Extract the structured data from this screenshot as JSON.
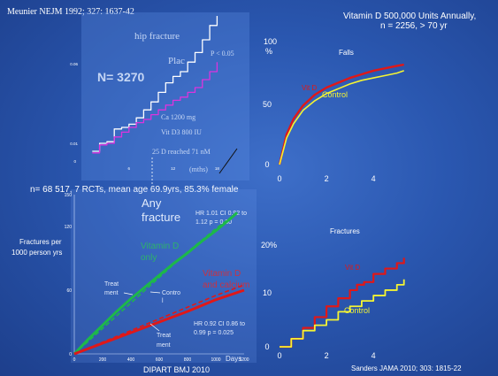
{
  "slide": {
    "citation_top_left": "Meunier NEJM 1992; 327: 1637-42",
    "header_top_right_line1": "Vitamin D 500,000 Units Annually,",
    "header_top_right_line2": "n = 2256,  > 70 yr",
    "mid_caption": "n= 68 517, 7 RCTs, mean age 69.9yrs, 85.3% female",
    "citation_bottom_left": "DIPART BMJ 2010",
    "citation_bottom_right": "Sanders JAMA 2010; 303: 1815-22"
  },
  "chart_data": [
    {
      "type": "line",
      "id": "meunier",
      "title": "hip fracture",
      "annotations": {
        "n": "N= 3270",
        "plac": "Plac",
        "pvalue": "P < 0.05",
        "ca": "Ca 1200 mg",
        "vitd": "Vit D3 800 IU",
        "reached": "25 D reached 71 nM",
        "xunit": "(mths)"
      },
      "x_ticks": [
        "6",
        "12",
        "18"
      ],
      "y_ticks": [
        "0.01",
        "0.06"
      ],
      "ylim": [
        0,
        0.09
      ],
      "xlim": [
        0,
        20
      ],
      "series": [
        {
          "name": "Plac",
          "color": "#ffffff",
          "x": [
            1,
            2,
            3,
            4,
            5,
            6,
            7,
            8,
            9,
            10,
            11,
            12,
            13,
            14,
            15,
            16,
            17,
            18
          ],
          "y": [
            0.005,
            0.01,
            0.011,
            0.019,
            0.02,
            0.022,
            0.026,
            0.031,
            0.036,
            0.042,
            0.048,
            0.052,
            0.055,
            0.061,
            0.067,
            0.075,
            0.084,
            0.09
          ]
        },
        {
          "name": "",
          "color": "#dd33dd",
          "x": [
            1,
            2,
            3,
            4,
            5,
            6,
            7,
            8,
            9,
            10,
            11,
            12,
            13,
            14,
            15,
            16,
            17,
            18
          ],
          "y": [
            0.004,
            0.009,
            0.01,
            0.014,
            0.017,
            0.02,
            0.023,
            0.025,
            0.028,
            0.031,
            0.034,
            0.037,
            0.039,
            0.042,
            0.045,
            0.05,
            0.055,
            0.061
          ]
        }
      ]
    },
    {
      "type": "line",
      "id": "falls",
      "title": "Falls",
      "ylabel_line1": "100",
      "ylabel_line2": "%",
      "y_ticks": [
        "50",
        "0"
      ],
      "x_ticks": [
        "0",
        "2",
        "4"
      ],
      "xlim": [
        0,
        5.5
      ],
      "ylim": [
        0,
        100
      ],
      "series": [
        {
          "name": "Vit D",
          "color": "#e01818",
          "x": [
            0,
            0.3,
            0.6,
            1,
            1.5,
            2,
            2.5,
            3,
            3.5,
            4,
            4.5,
            5,
            5.3
          ],
          "y": [
            0,
            25,
            38,
            49,
            58,
            64,
            68,
            72,
            75,
            78,
            80,
            82,
            83
          ]
        },
        {
          "name": "Control",
          "color": "#f5f532",
          "x": [
            0,
            0.3,
            0.6,
            1,
            1.5,
            2,
            2.5,
            3,
            3.5,
            4,
            4.5,
            5,
            5.3
          ],
          "y": [
            0,
            22,
            34,
            45,
            53,
            59,
            63,
            67,
            70,
            72,
            74,
            76,
            78
          ]
        }
      ]
    },
    {
      "type": "line",
      "id": "dipart",
      "title_line1": "Any",
      "title_line2": "fracture",
      "ylabel_line1": "Fractures per",
      "ylabel_line2": "1000 person yrs",
      "xlabel": "Days",
      "x_ticks": [
        "0",
        "200",
        "400",
        "600",
        "800",
        "1000",
        "1200"
      ],
      "y_ticks": [
        "0",
        "60",
        "120",
        "150"
      ],
      "xlim": [
        0,
        1200
      ],
      "ylim": [
        0,
        150
      ],
      "annotations": {
        "hr_top": "HR 1.01 CI 0.92 to 1.12 p = 0.80",
        "hr_bottom": "HR 0.92  CI 0.86  to 0.99 p = 0.025",
        "vitd_only_line1": "Vitamin  D",
        "vitd_only_line2": "only",
        "vitd_ca_line1": "Vitamin D",
        "vitd_ca_line2": "and calcium",
        "treat_top_line1": "Treat",
        "treat_top_line2": "ment",
        "control_line1": "Contro",
        "control_line2": "l",
        "treat_bottom_line1": "Treat",
        "treat_bottom_line2": "ment"
      },
      "series": [
        {
          "name": "Vitamin D only",
          "color": "#1db84a",
          "style": "solid",
          "x": [
            0,
            100,
            200,
            300,
            400,
            500,
            600,
            700,
            800,
            900,
            1000,
            1100,
            1150
          ],
          "y": [
            0,
            14,
            27,
            40,
            52,
            63,
            74,
            85,
            95,
            106,
            116,
            127,
            133
          ]
        },
        {
          "name": "Control",
          "color": "#1db84a",
          "style": "dashed",
          "x": [
            0,
            200,
            400,
            600,
            800,
            1000,
            1150
          ],
          "y": [
            0,
            24,
            48,
            72,
            96,
            118,
            133
          ]
        },
        {
          "name": "Vitamin D and calcium",
          "color": "#e01818",
          "style": "solid",
          "x": [
            0,
            200,
            400,
            600,
            800,
            1000,
            1200
          ],
          "y": [
            0,
            10,
            20,
            30,
            40,
            51,
            60
          ]
        },
        {
          "name": "Control",
          "color": "#e01818",
          "style": "dashed",
          "x": [
            0,
            200,
            400,
            600,
            800,
            1000,
            1200
          ],
          "y": [
            0,
            11,
            22,
            33,
            44,
            55,
            65
          ]
        }
      ]
    },
    {
      "type": "line",
      "id": "fractures",
      "title": "Fractures",
      "ylabel": "20%",
      "y_ticks": [
        "10",
        "0"
      ],
      "x_ticks": [
        "0",
        "2",
        "4"
      ],
      "xlim": [
        0,
        5.5
      ],
      "ylim": [
        0,
        20
      ],
      "series": [
        {
          "name": "Vit D",
          "color": "#e01818",
          "step": true,
          "x": [
            0,
            0.5,
            1,
            1.5,
            2,
            2.5,
            3,
            3.3,
            3.6,
            4,
            4.5,
            5,
            5.3
          ],
          "y": [
            0,
            1.5,
            3.5,
            5.5,
            7.5,
            9,
            10.5,
            11.5,
            12,
            13.5,
            14.5,
            15.5,
            16.5
          ]
        },
        {
          "name": "Control",
          "color": "#f5f532",
          "step": true,
          "x": [
            0,
            0.5,
            1,
            1.5,
            2,
            2.5,
            3,
            3.5,
            4,
            4.5,
            5,
            5.3
          ],
          "y": [
            0,
            1.5,
            3,
            4,
            5,
            6.5,
            7.5,
            8.5,
            9.5,
            10.5,
            11.5,
            12.5
          ]
        }
      ]
    }
  ]
}
